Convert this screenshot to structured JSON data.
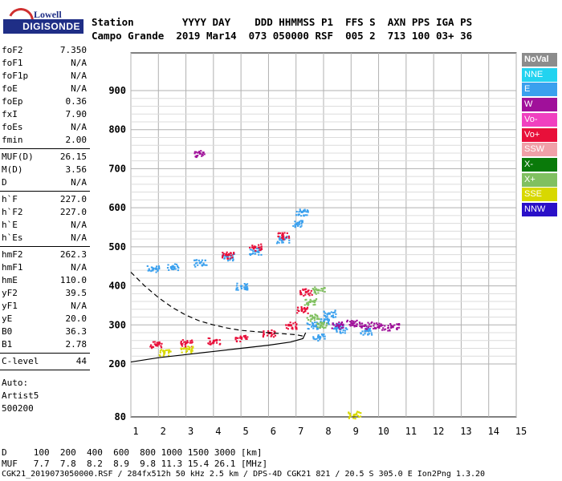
{
  "logo": {
    "line1": "Lowell",
    "line2": "DIGISONDE"
  },
  "header": {
    "row1": "Station        YYYY DAY    DDD HHMMSS P1  FFS S  AXN PPS IGA PS",
    "row2": "Campo Grande  2019 Mar14  073 050000 RSF  005 2  713 100 03+ 36"
  },
  "params": [
    {
      "k": "foF2",
      "v": "7.350"
    },
    {
      "k": "foF1",
      "v": "N/A"
    },
    {
      "k": "foF1p",
      "v": "N/A"
    },
    {
      "k": "foE",
      "v": "N/A"
    },
    {
      "k": "foEp",
      "v": "0.36"
    },
    {
      "k": "fxI",
      "v": "7.90"
    },
    {
      "k": "foEs",
      "v": "N/A"
    },
    {
      "k": "fmin",
      "v": "2.00"
    },
    {
      "k": "MUF(D)",
      "v": "26.15"
    },
    {
      "k": "M(D)",
      "v": "3.56"
    },
    {
      "k": "D",
      "v": "N/A"
    },
    {
      "k": "h`F",
      "v": "227.0"
    },
    {
      "k": "h`F2",
      "v": "227.0"
    },
    {
      "k": "h`E",
      "v": "N/A"
    },
    {
      "k": "h`Es",
      "v": "N/A"
    },
    {
      "k": "hmF2",
      "v": "262.3"
    },
    {
      "k": "hmF1",
      "v": "N/A"
    },
    {
      "k": "hmE",
      "v": "110.0"
    },
    {
      "k": "yF2",
      "v": "39.5"
    },
    {
      "k": "yF1",
      "v": "N/A"
    },
    {
      "k": "yE",
      "v": "20.0"
    },
    {
      "k": "B0",
      "v": "36.3"
    },
    {
      "k": "B1",
      "v": "2.78"
    },
    {
      "k": "C-level",
      "v": "44"
    }
  ],
  "auto": {
    "l1": "Auto:",
    "l2": "Artist5",
    "l3": "500200"
  },
  "legend": [
    {
      "label": "NoVal",
      "color": "#8c8c8c"
    },
    {
      "label": "NNE",
      "color": "#22d3f0"
    },
    {
      "label": "E",
      "color": "#3aa0ee"
    },
    {
      "label": "W",
      "color": "#a0109a"
    },
    {
      "label": "Vo-",
      "color": "#f040c0"
    },
    {
      "label": "Vo+",
      "color": "#e8103a"
    },
    {
      "label": "SSW",
      "color": "#f0a0a8"
    },
    {
      "label": "X-",
      "color": "#0a7a0a"
    },
    {
      "label": "X+",
      "color": "#80c060"
    },
    {
      "label": "SSE",
      "color": "#d8d800"
    },
    {
      "label": "NNW",
      "color": "#2a10c8"
    }
  ],
  "footer": {
    "row1": "D     100  200  400  600  800 1000 1500 3000 [km]",
    "row2": "MUF   7.7  7.8  8.2  8.9  9.8 11.3 15.4 26.1 [MHz]",
    "row3": "CGK21_2019073050000.RSF / 284fx512h 50 kHz 2.5 km / DPS-4D CGK21 821 / 20.5 S 305.0 E Ion2Png 1.3.20"
  },
  "chart_data": {
    "type": "scatter",
    "title": "",
    "xlabel": "",
    "ylabel": "",
    "xlim": [
      1,
      15
    ],
    "ylim": [
      80,
      900
    ],
    "x_ticks": [
      1,
      2,
      3,
      4,
      5,
      6,
      7,
      8,
      9,
      10,
      11,
      12,
      13,
      14,
      15
    ],
    "y_ticks": [
      80,
      200,
      300,
      400,
      500,
      600,
      700,
      800,
      900
    ],
    "grid": true,
    "series": [
      {
        "name": "E",
        "color": "#3aa0ee",
        "points": [
          [
            1.8,
            445
          ],
          [
            2.5,
            450
          ],
          [
            3.5,
            460
          ],
          [
            4.5,
            475
          ],
          [
            5.5,
            490
          ],
          [
            6.5,
            520
          ],
          [
            7.0,
            560
          ],
          [
            7.2,
            590
          ],
          [
            5.0,
            400
          ],
          [
            7.6,
            300
          ],
          [
            8.0,
            310
          ],
          [
            8.5,
            300
          ],
          [
            9.5,
            285
          ],
          [
            7.8,
            270
          ],
          [
            8.2,
            330
          ],
          [
            8.6,
            290
          ]
        ]
      },
      {
        "name": "Vo+",
        "color": "#e8103a",
        "points": [
          [
            1.9,
            250
          ],
          [
            3.0,
            255
          ],
          [
            4.0,
            260
          ],
          [
            5.0,
            268
          ],
          [
            6.0,
            280
          ],
          [
            6.8,
            300
          ],
          [
            7.2,
            340
          ],
          [
            7.35,
            385
          ],
          [
            4.5,
            480
          ],
          [
            5.5,
            500
          ],
          [
            6.5,
            530
          ]
        ]
      },
      {
        "name": "W",
        "color": "#a0109a",
        "points": [
          [
            8.5,
            300
          ],
          [
            9.0,
            305
          ],
          [
            9.5,
            300
          ],
          [
            10.0,
            298
          ],
          [
            10.5,
            296
          ],
          [
            3.5,
            740
          ]
        ]
      },
      {
        "name": "X+",
        "color": "#80c060",
        "points": [
          [
            7.5,
            360
          ],
          [
            7.8,
            390
          ],
          [
            7.6,
            320
          ],
          [
            7.9,
            300
          ]
        ]
      },
      {
        "name": "SSE",
        "color": "#d8d800",
        "points": [
          [
            2.2,
            230
          ],
          [
            3.0,
            240
          ],
          [
            9.1,
            85
          ]
        ]
      }
    ],
    "profile_curve": {
      "style": "solid",
      "points": [
        [
          1.0,
          205
        ],
        [
          2.0,
          216
        ],
        [
          3.0,
          224
        ],
        [
          4.0,
          232
        ],
        [
          5.0,
          240
        ],
        [
          6.0,
          248
        ],
        [
          6.8,
          256
        ],
        [
          7.25,
          265
        ],
        [
          7.35,
          280
        ]
      ]
    },
    "muf_curve": {
      "style": "dashed",
      "points": [
        [
          1.0,
          435
        ],
        [
          1.5,
          400
        ],
        [
          2.0,
          370
        ],
        [
          2.5,
          345
        ],
        [
          3.0,
          325
        ],
        [
          3.5,
          310
        ],
        [
          4.0,
          300
        ],
        [
          4.5,
          292
        ],
        [
          5.0,
          286
        ],
        [
          6.0,
          280
        ],
        [
          7.0,
          275
        ],
        [
          7.35,
          270
        ]
      ]
    }
  }
}
